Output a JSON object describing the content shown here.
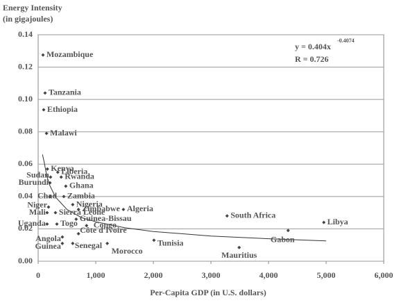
{
  "chart_data": {
    "type": "scatter",
    "title": [
      "Energy Intensity",
      "(in gigajoules)"
    ],
    "x_label": "Per-Capita GDP (in U.S. dollars)",
    "annotations": {
      "equation": "y = 0.404x",
      "exponent": "-0.4074",
      "r": "R = 0.726"
    },
    "xlim": [
      0,
      6000
    ],
    "xticks": [
      0,
      {
        "value": 1000,
        "label": "1,000"
      },
      {
        "value": 2000,
        "label": "2,000"
      },
      {
        "value": 3000,
        "label": "3,000"
      },
      {
        "value": 4000,
        "label": "4,000"
      },
      {
        "value": 5000,
        "label": "5,000"
      },
      {
        "value": 6000,
        "label": "6,000"
      }
    ],
    "ylim": [
      0,
      0.14
    ],
    "yticks": [
      {
        "value": 0,
        "label": "0.00"
      },
      {
        "value": 0.02,
        "label": "0.02"
      },
      {
        "value": 0.04,
        "label": "0.04"
      },
      {
        "value": 0.06,
        "label": "0.06"
      },
      {
        "value": 0.08,
        "label": "0.08"
      },
      {
        "value": 0.1,
        "label": "0.10"
      },
      {
        "value": 0.12,
        "label": "0.12"
      },
      {
        "value": 0.14,
        "label": "0.14"
      }
    ],
    "grid": true,
    "series": [
      {
        "color": "#444444",
        "labels": [
          "Mozambique",
          "Tanzania",
          "Ethiopia",
          "Malawi",
          "Kenya",
          "Liberia",
          "Sudan",
          "Rwanda",
          "Burundi",
          "Ghana",
          "Chad",
          "Zambia",
          "Nigeria",
          "Niger",
          "Zimbabwe",
          "Algeria",
          "Mali",
          "Sierra Leone",
          "Guinea-Bissau",
          "Uganda",
          "Togo",
          "Congo",
          "South Africa",
          "Libya",
          "Côte d'Ivoire",
          "Angola",
          "Gabon",
          "Tunisia",
          "Guinea",
          "Senegal",
          "Morocco",
          "Mauritius"
        ],
        "x": [
          84,
          120,
          96,
          145,
          160,
          340,
          215,
          400,
          205,
          480,
          205,
          445,
          600,
          180,
          700,
          1480,
          155,
          300,
          660,
          155,
          325,
          840,
          3280,
          4960,
          700,
          420,
          4340,
          2010,
          420,
          600,
          1200,
          3490
        ],
        "y": [
          0.1275,
          0.104,
          0.0936,
          0.079,
          0.057,
          0.055,
          0.052,
          0.052,
          0.0485,
          0.0464,
          0.04,
          0.04,
          0.035,
          0.0335,
          0.032,
          0.032,
          0.03,
          0.03,
          0.026,
          0.023,
          0.023,
          0.022,
          0.028,
          0.024,
          0.017,
          0.015,
          0.019,
          0.013,
          0.011,
          0.011,
          0.011,
          0.0085
        ]
      }
    ],
    "trend_line": {
      "color": "#333333",
      "x": [
        75,
        100,
        150,
        200,
        300,
        500,
        750,
        1000,
        1500,
        2000,
        3000,
        4000,
        5000
      ],
      "y": [
        0.066,
        0.062,
        0.0526,
        0.047,
        0.0397,
        0.032,
        0.027,
        0.0244,
        0.0207,
        0.0184,
        0.0156,
        0.0139,
        0.0126
      ]
    }
  }
}
